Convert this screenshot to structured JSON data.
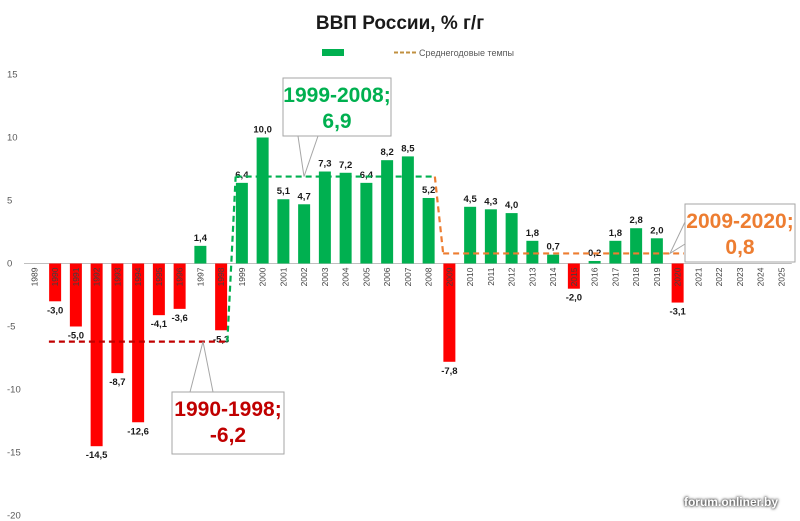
{
  "chart_data": {
    "type": "bar",
    "title": "ВВП России, % г/г",
    "xlabel": "",
    "ylabel": "",
    "ylim": [
      -20,
      15
    ],
    "yticks": [
      15,
      10,
      5,
      0,
      -5,
      -10,
      -15,
      -20
    ],
    "grid": false,
    "legend_position": "top-center",
    "categories": [
      "1989",
      "1990",
      "1991",
      "1992",
      "1993",
      "1994",
      "1995",
      "1996",
      "1997",
      "1998",
      "1999",
      "2000",
      "2001",
      "2002",
      "2003",
      "2004",
      "2005",
      "2006",
      "2007",
      "2008",
      "2009",
      "2010",
      "2011",
      "2012",
      "2013",
      "2014",
      "2015",
      "2016",
      "2017",
      "2018",
      "2019",
      "2020",
      "2021",
      "2022",
      "2023",
      "2024",
      "2025"
    ],
    "values": [
      null,
      -3.0,
      -5.0,
      -14.5,
      -8.7,
      -12.6,
      -4.1,
      -3.6,
      1.4,
      -5.3,
      6.4,
      10.0,
      5.1,
      4.7,
      7.3,
      7.2,
      6.4,
      8.2,
      8.5,
      5.2,
      -7.8,
      4.5,
      4.3,
      4.0,
      1.8,
      0.7,
      -2.0,
      0.2,
      1.8,
      2.8,
      2.0,
      -3.1,
      null,
      null,
      null,
      null,
      null
    ],
    "data_labels": [
      "",
      "-3,0",
      "-5,0",
      "-14,5",
      "-8,7",
      "-12,6",
      "-4,1",
      "-3,6",
      "1,4",
      "-5,3",
      "6,4",
      "10,0",
      "5,1",
      "4,7",
      "7,3",
      "7,2",
      "6,4",
      "8,2",
      "8,5",
      "5,2",
      "-7,8",
      "4,5",
      "4,3",
      "4,0",
      "1,8",
      "0,7",
      "-2,0",
      "0,2",
      "1,8",
      "2,8",
      "2,0",
      "-3,1",
      "",
      "",
      "",
      "",
      ""
    ],
    "positive_color": "#00b050",
    "negative_color": "#ff0000",
    "series": [
      {
        "name": "",
        "type": "bar"
      },
      {
        "name": "Среднегодовые темпы",
        "type": "line",
        "dashed": true,
        "color": "#c09040",
        "segments": [
          {
            "from": "1990",
            "to": "1998",
            "value": -6.2,
            "color": "#c00000"
          },
          {
            "from": "1999",
            "to": "2008",
            "value": 6.9,
            "color": "#00b050"
          },
          {
            "from": "2009",
            "to": "2020",
            "value": 0.8,
            "color": "#ed7d31"
          }
        ]
      }
    ],
    "annotations": [
      {
        "lines": [
          "1999-2008;",
          "6,9"
        ],
        "color": "#00b050"
      },
      {
        "lines": [
          "1990-1998;",
          "-6,2"
        ],
        "color": "#c00000"
      },
      {
        "lines": [
          "2009-2020;",
          "0,8"
        ],
        "color": "#ed7d31"
      }
    ]
  },
  "watermark": "forum.onliner.by"
}
